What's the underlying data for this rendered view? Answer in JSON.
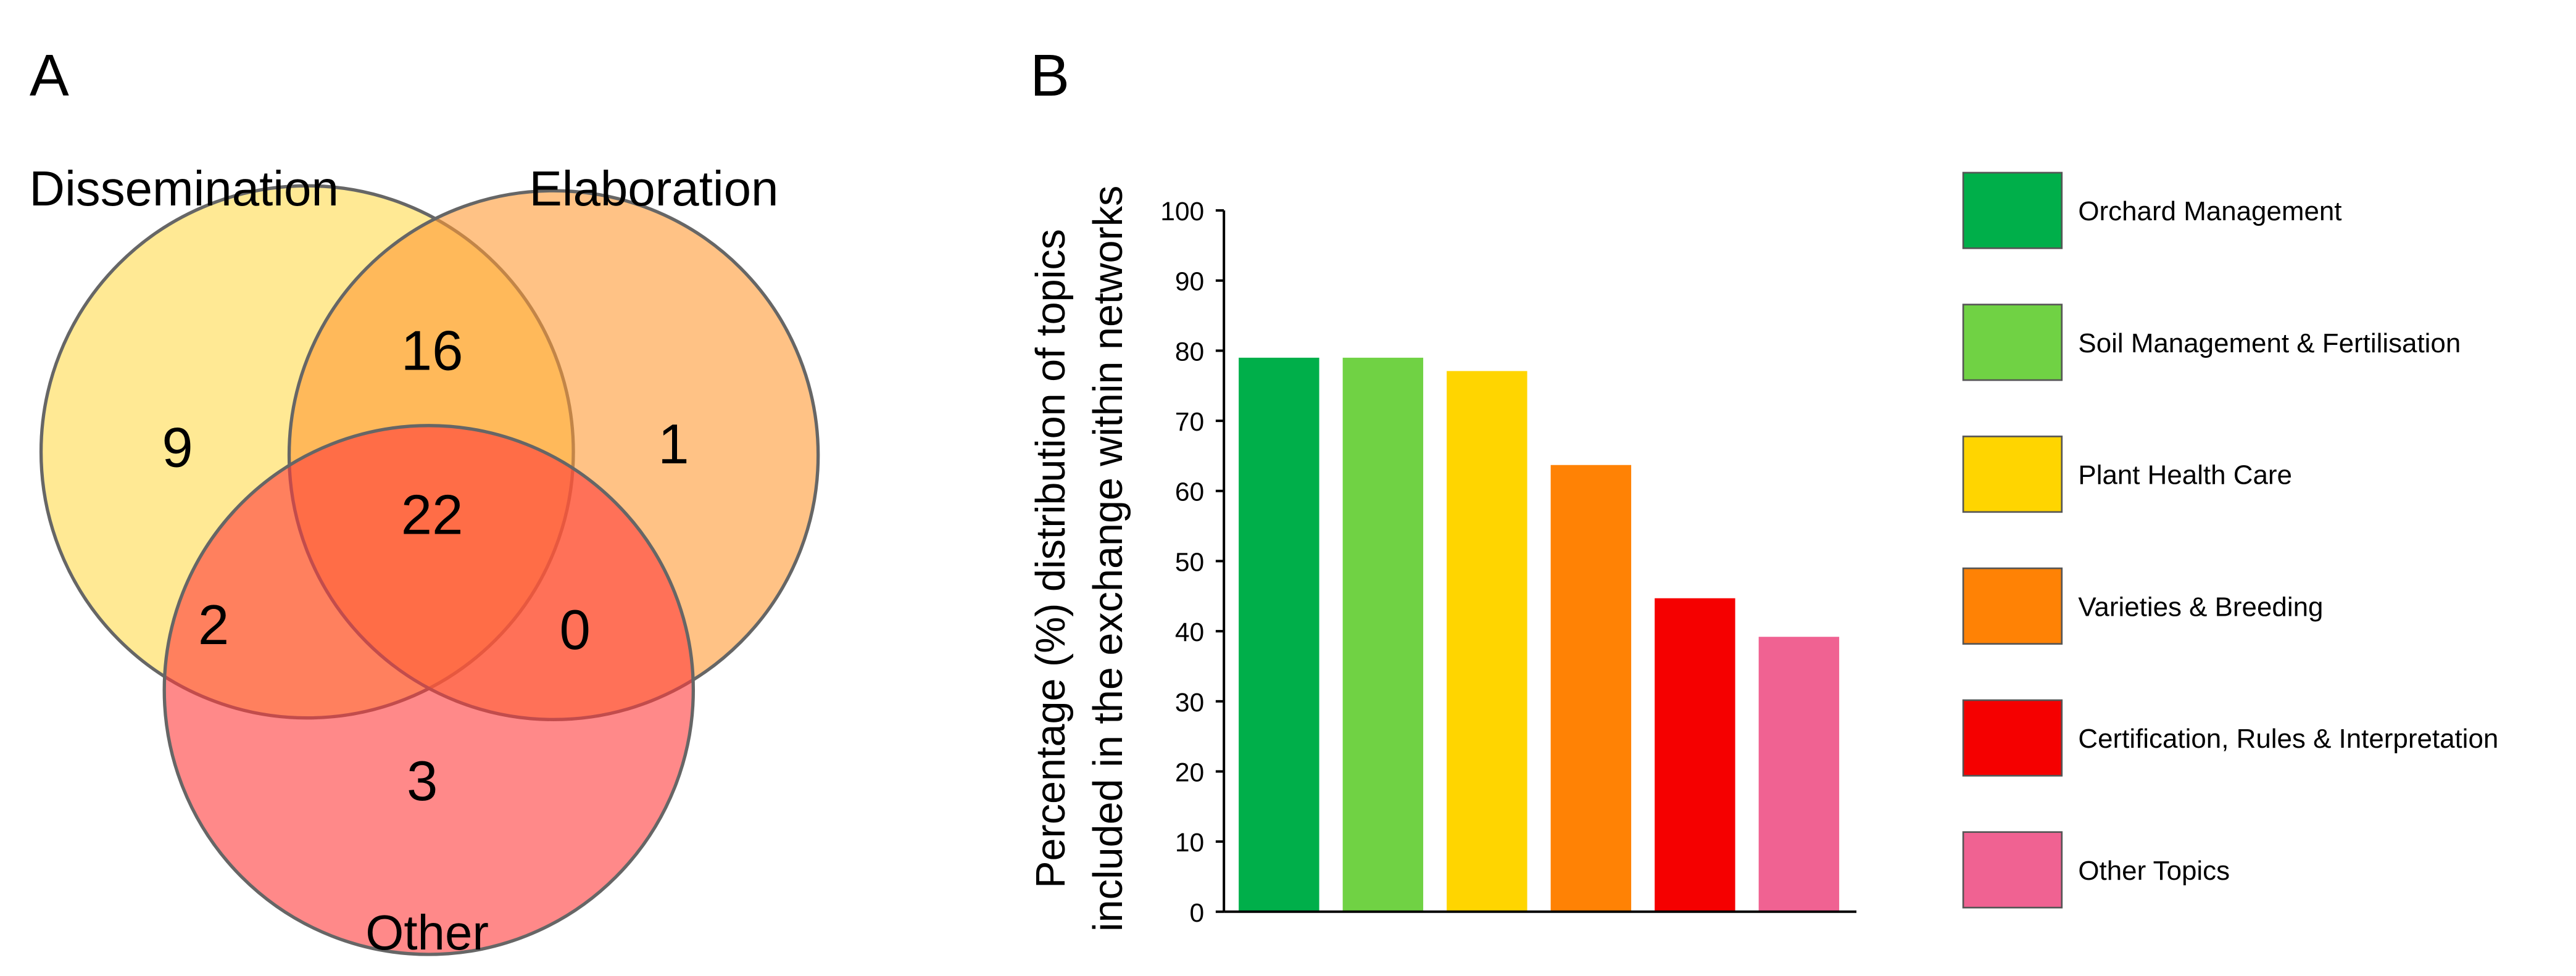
{
  "panel_a": {
    "label": "A",
    "sets": [
      {
        "name": "Dissemination",
        "color": "#FFDA4D"
      },
      {
        "name": "Elaboration",
        "color": "#FF9A33"
      },
      {
        "name": "Other",
        "color": "#FF3B3B"
      }
    ],
    "regions": {
      "dissemination_only": "9",
      "dissemination_elaboration": "16",
      "elaboration_only": "1",
      "all_three": "22",
      "dissemination_other": "2",
      "elaboration_other": "0",
      "other_only": "3"
    }
  },
  "panel_b": {
    "label": "B"
  },
  "chart_data": {
    "type": "bar",
    "title": "",
    "xlabel": "",
    "ylabel": [
      "Percentage (%) distribution of topics",
      "included in the exchange within networks"
    ],
    "ylim": [
      0,
      100
    ],
    "yticks": [
      "0",
      "10",
      "20",
      "30",
      "40",
      "50",
      "60",
      "70",
      "80",
      "90",
      "100"
    ],
    "categories": [
      "Orchard Management",
      "Soil Management & Fertilisation",
      "Plant Health Care",
      "Varieties & Breeding",
      "Certification, Rules & Interpretation",
      "Other Topics"
    ],
    "values": [
      79,
      79,
      77.1,
      63.7,
      44.7,
      39.2
    ],
    "colors": [
      "#00AF4A",
      "#70D244",
      "#FFD500",
      "#FF8205",
      "#F50000",
      "#F06292"
    ],
    "legend": "right",
    "grid": false
  }
}
